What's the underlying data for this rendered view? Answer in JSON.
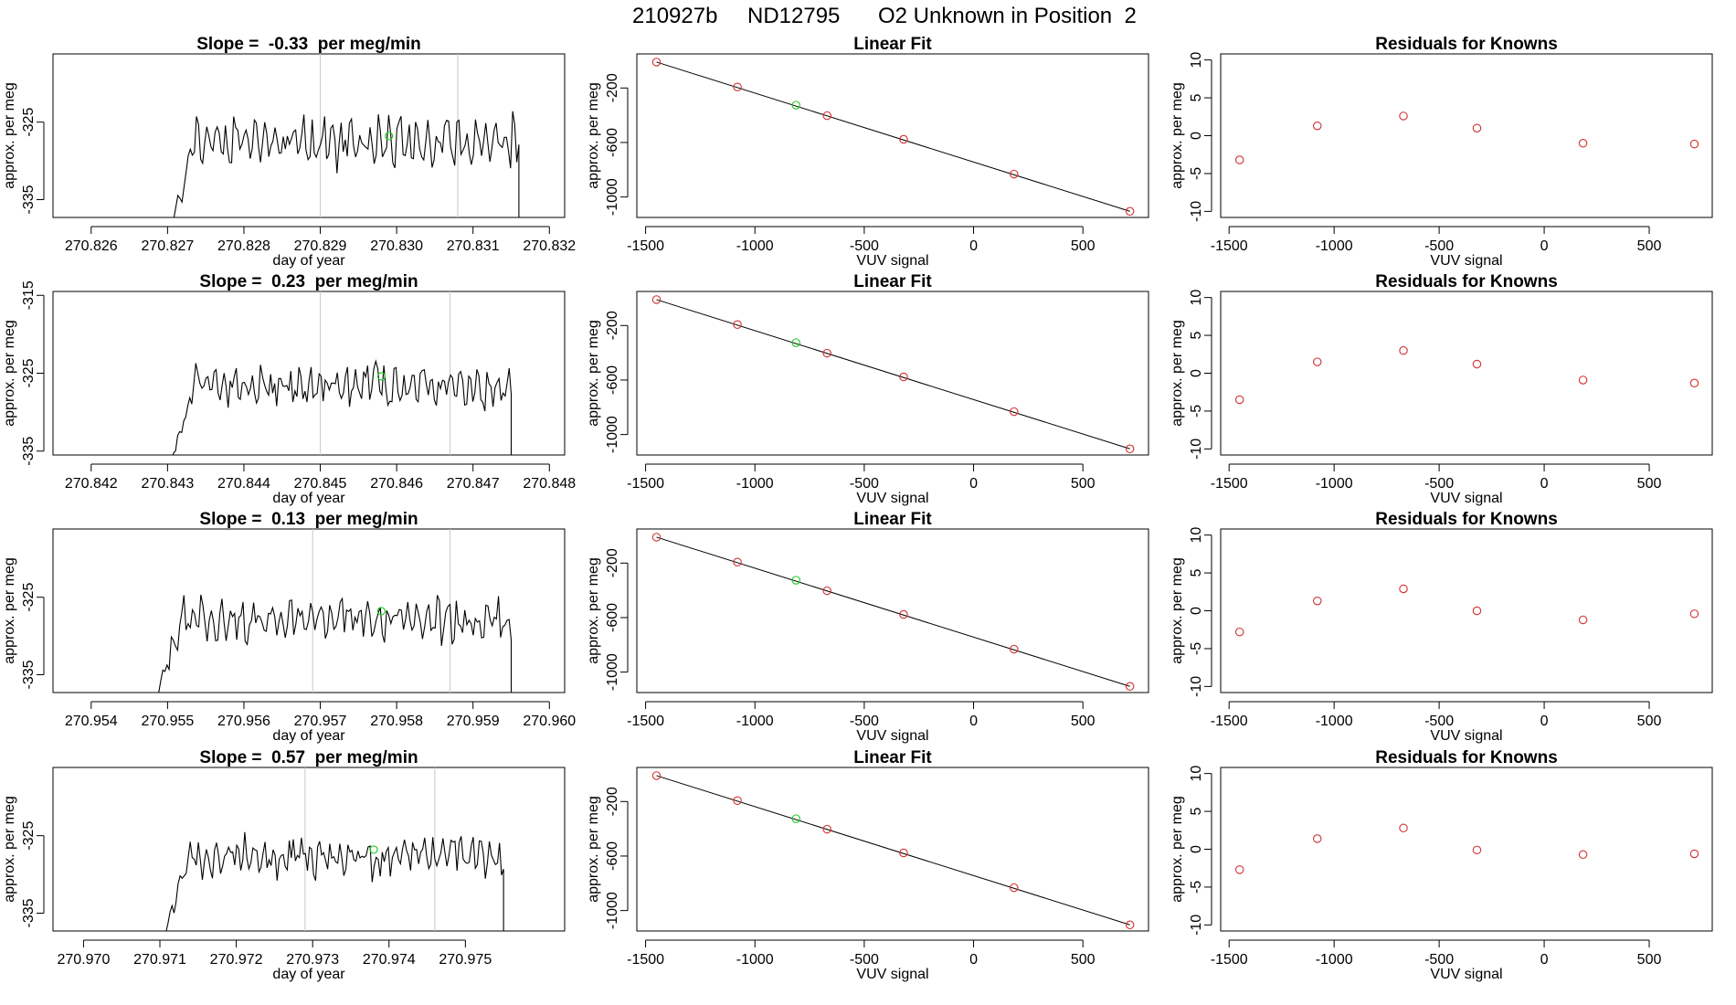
{
  "figure": {
    "run_id": "210927b",
    "tank_id": "ND12795",
    "description": "O2 Unknown in Position  2"
  },
  "colors": {
    "trace": "#000000",
    "known_point": "#d23030",
    "unknown_point": "#22cc22",
    "reference_line": "#c8c8c8"
  },
  "chart_data": [
    {
      "type": "line",
      "row": 1,
      "title": "Slope =  -0.33  per meg/min",
      "xlabel": "day of year",
      "ylabel": "approx. per meg",
      "xlim": [
        270.8255,
        270.8322
      ],
      "ylim": [
        -337.3,
        -316.2
      ],
      "xticks": [
        270.826,
        270.827,
        270.828,
        270.829,
        270.83,
        270.831,
        270.832
      ],
      "xtick_labels": [
        "270.826",
        "270.827",
        "270.828",
        "270.829",
        "270.830",
        "270.831",
        "270.832"
      ],
      "yticks": [
        -325,
        -335
      ],
      "ytick_labels": [
        "-325",
        "-335"
      ],
      "trace_start": 270.827,
      "trace_end": 270.8316,
      "trace_mean": -327.6,
      "trace_amplitude": 2.6,
      "reference_lines": [
        270.829,
        270.8308
      ],
      "unknown_point": {
        "x": 270.8299,
        "y": -326.8
      },
      "seed": 11
    },
    {
      "type": "scatter",
      "row": 1,
      "title": "Linear Fit",
      "xlabel": "VUV signal",
      "ylabel": "approx. per meg",
      "xlim": [
        -1540,
        800
      ],
      "ylim": [
        -1150,
        50
      ],
      "xticks": [
        -1500,
        -1000,
        -500,
        0,
        500
      ],
      "xtick_labels": [
        "-1500",
        "-1000",
        "-500",
        "0",
        "500"
      ],
      "yticks": [
        -200,
        -600,
        -1000
      ],
      "ytick_labels": [
        "-200",
        "-600",
        "-1000"
      ],
      "fit_line": {
        "x": [
          -1450,
          715
        ],
        "y": [
          -10,
          -1105
        ]
      },
      "knowns": {
        "x": [
          -1450,
          -1080,
          -670,
          -320,
          185,
          715
        ],
        "y": [
          -10,
          -193,
          -403,
          -577,
          -832,
          -1105
        ]
      },
      "unknown": {
        "x": -812,
        "y": -326
      }
    },
    {
      "type": "scatter",
      "row": 1,
      "title": "Residuals for Knowns",
      "xlabel": "VUV signal",
      "ylabel": "approx. per meg",
      "xlim": [
        -1540,
        800
      ],
      "ylim": [
        -10.8,
        10.8
      ],
      "xticks": [
        -1500,
        -1000,
        -500,
        0,
        500
      ],
      "xtick_labels": [
        "-1500",
        "-1000",
        "-500",
        "0",
        "500"
      ],
      "yticks": [
        10,
        5,
        0,
        -5,
        -10
      ],
      "ytick_labels": [
        "10",
        "5",
        "0",
        "-5",
        "-10"
      ],
      "knowns": {
        "x": [
          -1450,
          -1080,
          -670,
          -320,
          185,
          715
        ],
        "y": [
          -3.2,
          1.3,
          2.6,
          1.0,
          -1.0,
          -1.1
        ]
      }
    },
    {
      "type": "line",
      "row": 2,
      "title": "Slope =  0.23  per meg/min",
      "xlabel": "day of year",
      "ylabel": "approx. per meg",
      "xlim": [
        270.8415,
        270.8482
      ],
      "ylim": [
        -335.5,
        -314.5
      ],
      "xticks": [
        270.842,
        270.843,
        270.844,
        270.845,
        270.846,
        270.847,
        270.848
      ],
      "xtick_labels": [
        "270.842",
        "270.843",
        "270.844",
        "270.845",
        "270.846",
        "270.847",
        "270.848"
      ],
      "yticks": [
        -315,
        -325,
        -335
      ],
      "ytick_labels": [
        "-315",
        "-325",
        "-335"
      ],
      "trace_start": 270.843,
      "trace_end": 270.8475,
      "trace_mean": -326.6,
      "trace_amplitude": 2.3,
      "reference_lines": [
        270.845,
        270.8467
      ],
      "unknown_point": {
        "x": 270.8458,
        "y": -325.4
      },
      "seed": 23
    },
    {
      "type": "scatter",
      "row": 2,
      "title": "Linear Fit",
      "xlabel": "VUV signal",
      "ylabel": "approx. per meg",
      "xlim": [
        -1540,
        800
      ],
      "ylim": [
        -1150,
        50
      ],
      "xticks": [
        -1500,
        -1000,
        -500,
        0,
        500
      ],
      "xtick_labels": [
        "-1500",
        "-1000",
        "-500",
        "0",
        "500"
      ],
      "yticks": [
        -200,
        -600,
        -1000
      ],
      "ytick_labels": [
        "-200",
        "-600",
        "-1000"
      ],
      "fit_line": {
        "x": [
          -1450,
          715
        ],
        "y": [
          -10,
          -1105
        ]
      },
      "knowns": {
        "x": [
          -1450,
          -1080,
          -670,
          -320,
          185,
          715
        ],
        "y": [
          -10,
          -193,
          -403,
          -577,
          -832,
          -1105
        ]
      },
      "unknown": {
        "x": -812,
        "y": -326
      }
    },
    {
      "type": "scatter",
      "row": 2,
      "title": "Residuals for Knowns",
      "xlabel": "VUV signal",
      "ylabel": "approx. per meg",
      "xlim": [
        -1540,
        800
      ],
      "ylim": [
        -10.8,
        10.8
      ],
      "xticks": [
        -1500,
        -1000,
        -500,
        0,
        500
      ],
      "xtick_labels": [
        "-1500",
        "-1000",
        "-500",
        "0",
        "500"
      ],
      "yticks": [
        10,
        5,
        0,
        -5,
        -10
      ],
      "ytick_labels": [
        "10",
        "5",
        "0",
        "-5",
        "-10"
      ],
      "knowns": {
        "x": [
          -1450,
          -1080,
          -670,
          -320,
          185,
          715
        ],
        "y": [
          -3.5,
          1.5,
          3.0,
          1.2,
          -0.9,
          -1.3
        ]
      }
    },
    {
      "type": "line",
      "row": 3,
      "title": "Slope =  0.13  per meg/min",
      "xlabel": "day of year",
      "ylabel": "approx. per meg",
      "xlim": [
        270.9535,
        270.9602
      ],
      "ylim": [
        -337.3,
        -316.2
      ],
      "xticks": [
        270.954,
        270.955,
        270.956,
        270.957,
        270.958,
        270.959,
        270.96
      ],
      "xtick_labels": [
        "270.954",
        "270.955",
        "270.956",
        "270.957",
        "270.958",
        "270.959",
        "270.960"
      ],
      "yticks": [
        -325,
        -335
      ],
      "ytick_labels": [
        "-325",
        "-335"
      ],
      "trace_start": 270.9548,
      "trace_end": 270.9595,
      "trace_mean": -328.0,
      "trace_amplitude": 2.4,
      "reference_lines": [
        270.9569,
        270.9587
      ],
      "unknown_point": {
        "x": 270.9578,
        "y": -326.8
      },
      "seed": 37
    },
    {
      "type": "scatter",
      "row": 3,
      "title": "Linear Fit",
      "xlabel": "VUV signal",
      "ylabel": "approx. per meg",
      "xlim": [
        -1540,
        800
      ],
      "ylim": [
        -1150,
        50
      ],
      "xticks": [
        -1500,
        -1000,
        -500,
        0,
        500
      ],
      "xtick_labels": [
        "-1500",
        "-1000",
        "-500",
        "0",
        "500"
      ],
      "yticks": [
        -200,
        -600,
        -1000
      ],
      "ytick_labels": [
        "-200",
        "-600",
        "-1000"
      ],
      "fit_line": {
        "x": [
          -1450,
          715
        ],
        "y": [
          -10,
          -1105
        ]
      },
      "knowns": {
        "x": [
          -1450,
          -1080,
          -670,
          -320,
          185,
          715
        ],
        "y": [
          -10,
          -193,
          -403,
          -577,
          -832,
          -1105
        ]
      },
      "unknown": {
        "x": -812,
        "y": -326
      }
    },
    {
      "type": "scatter",
      "row": 3,
      "title": "Residuals for Knowns",
      "xlabel": "VUV signal",
      "ylabel": "approx. per meg",
      "xlim": [
        -1540,
        800
      ],
      "ylim": [
        -10.8,
        10.8
      ],
      "xticks": [
        -1500,
        -1000,
        -500,
        0,
        500
      ],
      "xtick_labels": [
        "-1500",
        "-1000",
        "-500",
        "0",
        "500"
      ],
      "yticks": [
        10,
        5,
        0,
        -5,
        -10
      ],
      "ytick_labels": [
        "10",
        "5",
        "0",
        "-5",
        "-10"
      ],
      "knowns": {
        "x": [
          -1450,
          -1080,
          -670,
          -320,
          185,
          715
        ],
        "y": [
          -2.8,
          1.3,
          2.9,
          0.0,
          -1.2,
          -0.4
        ]
      }
    },
    {
      "type": "line",
      "row": 4,
      "title": "Slope =  0.57  per meg/min",
      "xlabel": "day of year",
      "ylabel": "approx. per meg",
      "xlim": [
        270.9696,
        270.9763
      ],
      "ylim": [
        -337.3,
        -316.2
      ],
      "xticks": [
        270.97,
        270.971,
        270.972,
        270.973,
        270.974,
        270.975
      ],
      "xtick_labels": [
        "270.970",
        "270.971",
        "270.972",
        "270.973",
        "270.974",
        "270.975"
      ],
      "yticks": [
        -325,
        -335
      ],
      "ytick_labels": [
        "-325",
        "-335"
      ],
      "trace_start": 270.971,
      "trace_end": 270.9755,
      "trace_mean": -327.8,
      "trace_amplitude": 2.3,
      "reference_lines": [
        270.9729,
        270.9746
      ],
      "unknown_point": {
        "x": 270.9738,
        "y": -326.8
      },
      "seed": 53
    },
    {
      "type": "scatter",
      "row": 4,
      "title": "Linear Fit",
      "xlabel": "VUV signal",
      "ylabel": "approx. per meg",
      "xlim": [
        -1540,
        800
      ],
      "ylim": [
        -1150,
        50
      ],
      "xticks": [
        -1500,
        -1000,
        -500,
        0,
        500
      ],
      "xtick_labels": [
        "-1500",
        "-1000",
        "-500",
        "0",
        "500"
      ],
      "yticks": [
        -200,
        -600,
        -1000
      ],
      "ytick_labels": [
        "-200",
        "-600",
        "-1000"
      ],
      "fit_line": {
        "x": [
          -1450,
          715
        ],
        "y": [
          -10,
          -1105
        ]
      },
      "knowns": {
        "x": [
          -1450,
          -1080,
          -670,
          -320,
          185,
          715
        ],
        "y": [
          -10,
          -193,
          -403,
          -577,
          -832,
          -1105
        ]
      },
      "unknown": {
        "x": -812,
        "y": -326
      }
    },
    {
      "type": "scatter",
      "row": 4,
      "title": "Residuals for Knowns",
      "xlabel": "VUV signal",
      "ylabel": "approx. per meg",
      "xlim": [
        -1540,
        800
      ],
      "ylim": [
        -10.8,
        10.8
      ],
      "xticks": [
        -1500,
        -1000,
        -500,
        0,
        500
      ],
      "xtick_labels": [
        "-1500",
        "-1000",
        "-500",
        "0",
        "500"
      ],
      "yticks": [
        10,
        5,
        0,
        -5,
        -10
      ],
      "ytick_labels": [
        "10",
        "5",
        "0",
        "-5",
        "-10"
      ],
      "knowns": {
        "x": [
          -1450,
          -1080,
          -670,
          -320,
          185,
          715
        ],
        "y": [
          -2.7,
          1.4,
          2.8,
          -0.1,
          -0.7,
          -0.6
        ]
      }
    }
  ]
}
